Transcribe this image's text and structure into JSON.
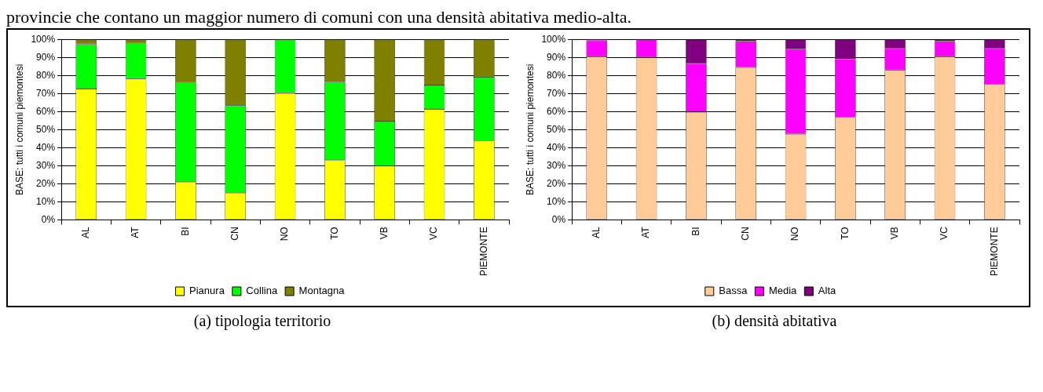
{
  "chart_data": [
    {
      "type": "bar",
      "title": "(a) tipologia territorio",
      "annotations": [
        "provincie che contano un maggior numero di comuni con una densità abitativa medio-alta."
      ],
      "ylabel": "BASE: tutti i comuni piemontesi",
      "stacked": true,
      "categories": [
        "AL",
        "AT",
        "BI",
        "CN",
        "NO",
        "TO",
        "VB",
        "VC",
        "PIEMONTE"
      ],
      "series": [
        {
          "name": "Pianura",
          "color": "#ffff00",
          "values": [
            72.7,
            78.2,
            21,
            15,
            70.3,
            33.1,
            29.8,
            61.4,
            43.8
          ]
        },
        {
          "name": "Collina",
          "color": "#00ff00",
          "values": [
            24.6,
            19.6,
            55,
            48.3,
            29.7,
            43.3,
            24.7,
            13.1,
            35.4
          ]
        },
        {
          "name": "Montagna",
          "color": "#808000",
          "values": [
            2.7,
            2.2,
            24,
            36.7,
            0,
            23.6,
            45.5,
            25.5,
            20.8
          ]
        }
      ],
      "ylim": [
        0,
        100
      ],
      "yticks": [
        {
          "value": 0,
          "label": "0%"
        },
        {
          "value": 10,
          "label": "10%"
        },
        {
          "value": 20,
          "label": "20%"
        },
        {
          "value": 30,
          "label": "30%"
        },
        {
          "value": 40,
          "label": "40%"
        },
        {
          "value": 50,
          "label": "50%"
        },
        {
          "value": 60,
          "label": "60%"
        },
        {
          "value": 70,
          "label": "70%"
        },
        {
          "value": 80,
          "label": "80%"
        },
        {
          "value": 90,
          "label": "90%"
        },
        {
          "value": 100,
          "label": "100%"
        }
      ],
      "grid": "y",
      "legend": "bottom"
    },
    {
      "type": "bar",
      "title": "(b) densità abitativa",
      "ylabel": "BASE: tutti i comuni piemontesi",
      "stacked": true,
      "categories": [
        "AL",
        "AT",
        "BI",
        "CN",
        "NO",
        "TO",
        "VB",
        "VC",
        "PIEMONTE"
      ],
      "series": [
        {
          "name": "Bassa",
          "color": "#ffcc99",
          "values": [
            90.5,
            90,
            59.7,
            84.5,
            47.6,
            56.8,
            83,
            90.5,
            75
          ]
        },
        {
          "name": "Media",
          "color": "#ff00ff",
          "values": [
            8.9,
            10,
            26.8,
            14.5,
            46.9,
            32.2,
            12,
            8.5,
            20
          ]
        },
        {
          "name": "Alta",
          "color": "#800080",
          "values": [
            0.8,
            0,
            13.5,
            1,
            5.5,
            11,
            5,
            1,
            5
          ]
        }
      ],
      "ylim": [
        0,
        100
      ],
      "yticks": [
        {
          "value": 0,
          "label": "0%"
        },
        {
          "value": 10,
          "label": "10%"
        },
        {
          "value": 20,
          "label": "20%"
        },
        {
          "value": 30,
          "label": "30%"
        },
        {
          "value": 40,
          "label": "40%"
        },
        {
          "value": 50,
          "label": "50%"
        },
        {
          "value": 60,
          "label": "60%"
        },
        {
          "value": 70,
          "label": "70%"
        },
        {
          "value": 80,
          "label": "80%"
        },
        {
          "value": 90,
          "label": "90%"
        },
        {
          "value": 100,
          "label": "100%"
        }
      ],
      "grid": "y",
      "legend": "bottom"
    }
  ]
}
